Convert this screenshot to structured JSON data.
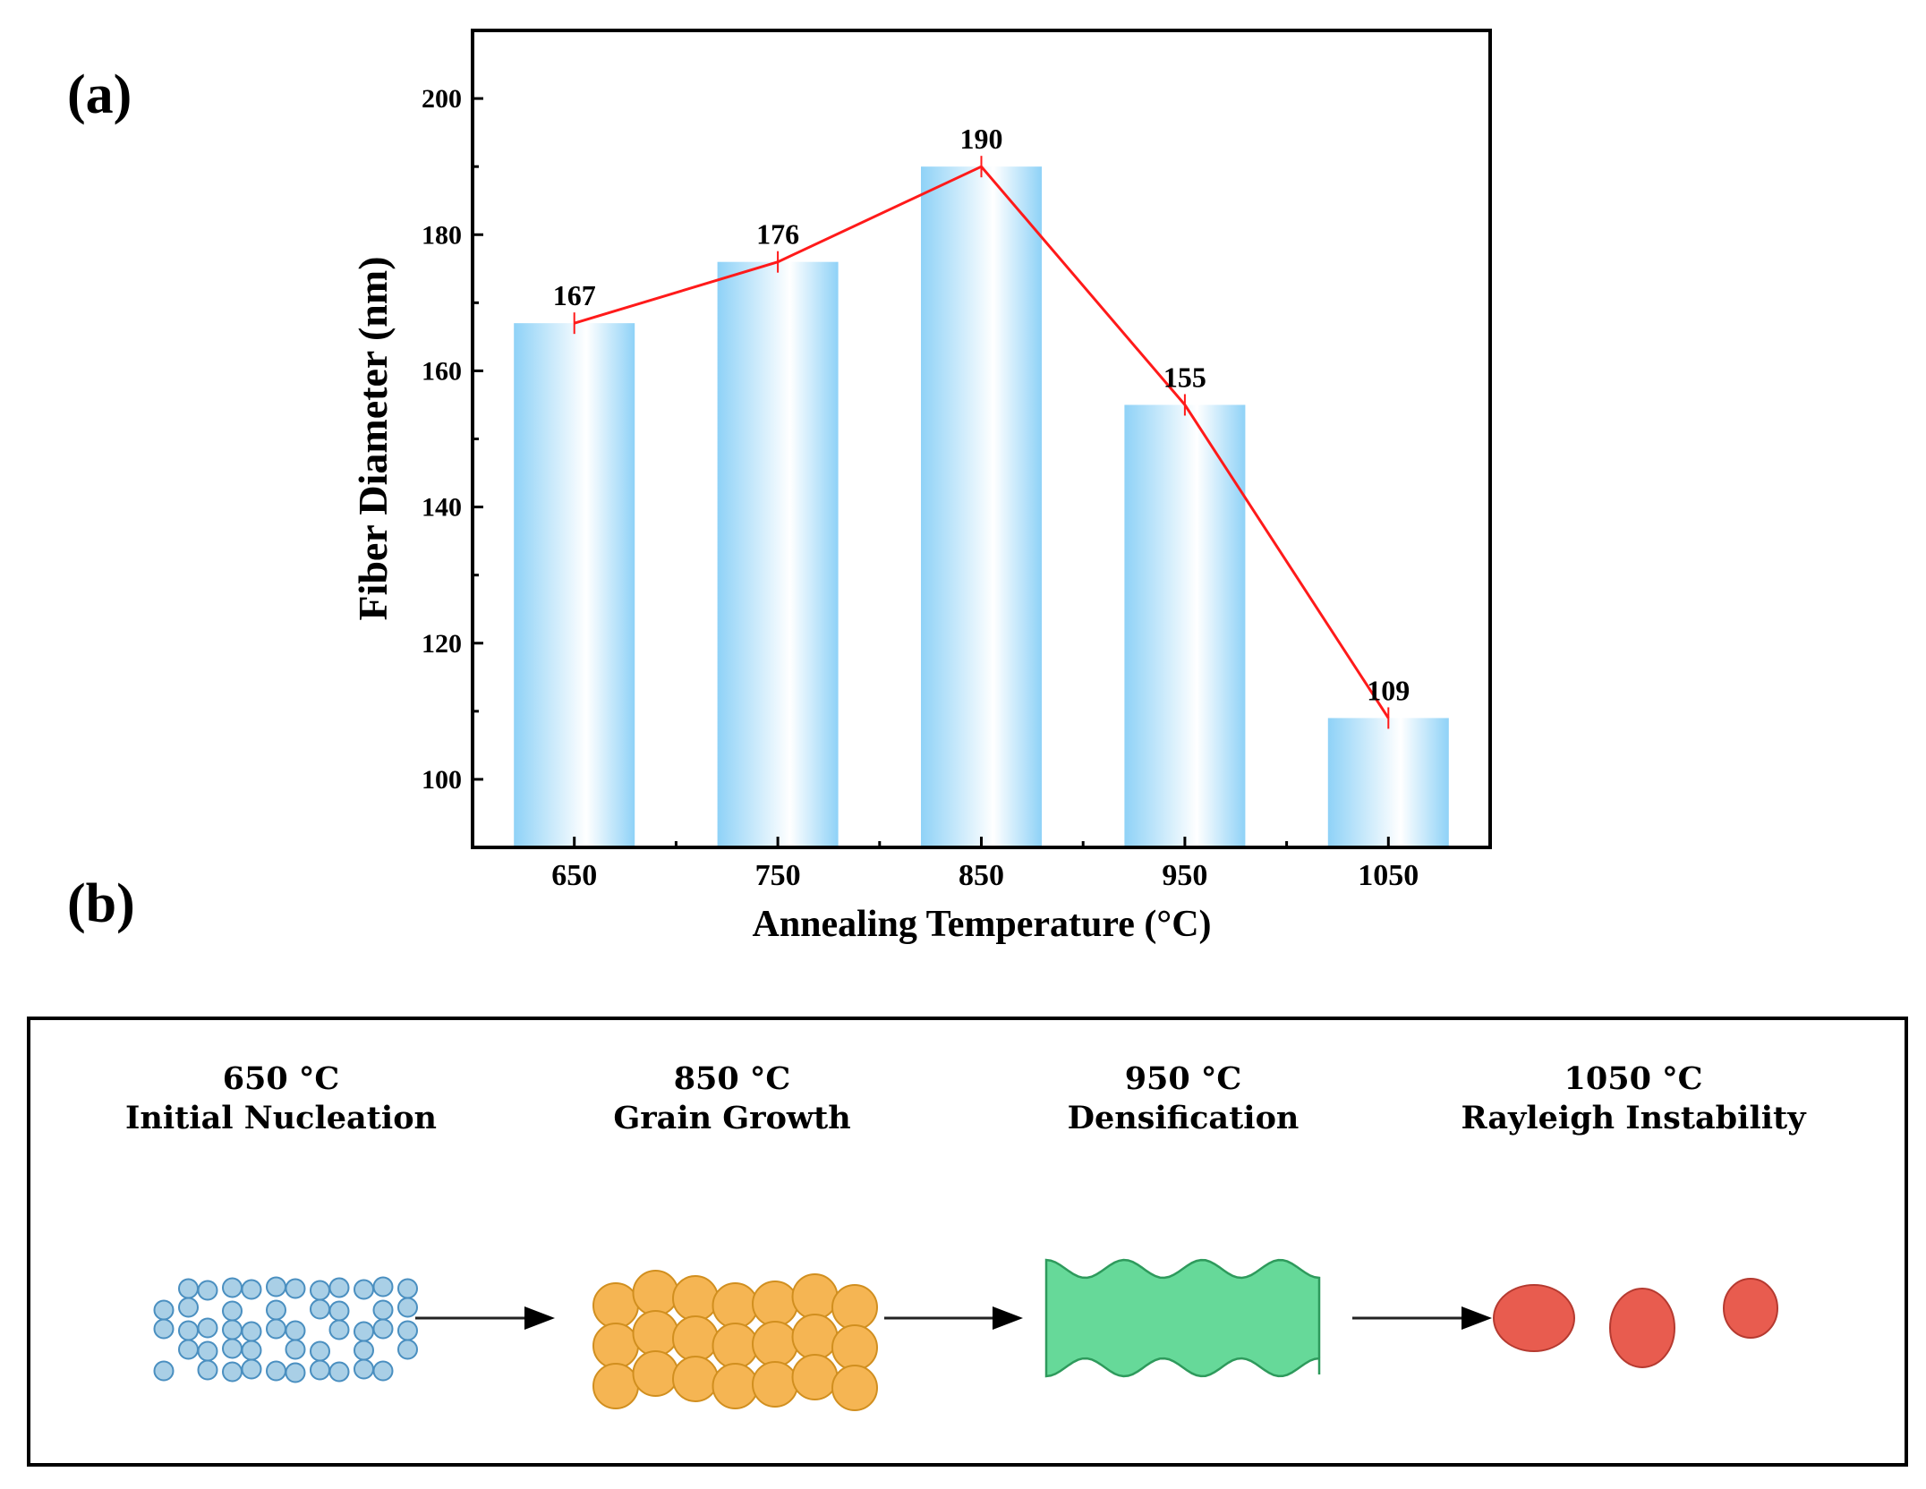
{
  "panel_a_label": "(a)",
  "panel_b_label": "(b)",
  "chart_data": {
    "type": "bar",
    "title": "",
    "xlabel": "Annealing Temperature (°C)",
    "ylabel": "Fiber Diameter (nm)",
    "categories": [
      "650",
      "750",
      "850",
      "950",
      "1050"
    ],
    "x": [
      650,
      750,
      850,
      950,
      1050
    ],
    "values": [
      167,
      176,
      190,
      155,
      109
    ],
    "data_labels": [
      "167",
      "176",
      "190",
      "155",
      "109"
    ],
    "overlay_line": {
      "color": "#ff1a1a",
      "values": [
        167,
        176,
        190,
        155,
        109
      ]
    },
    "xlim": [
      600,
      1100
    ],
    "ylim": [
      90,
      210
    ],
    "yticks": [
      100,
      120,
      140,
      160,
      180,
      200
    ],
    "ytick_labels": [
      "100",
      "120",
      "140",
      "160",
      "180",
      "200"
    ],
    "xtick_labels": [
      "650",
      "750",
      "850",
      "950",
      "1050"
    ],
    "bar_color": "#9fd8f8",
    "grid": false,
    "legend": "none"
  },
  "stages": [
    {
      "temp": "650 °C",
      "name": "Initial Nucleation",
      "color": "#a9cfe6"
    },
    {
      "temp": "850 °C",
      "name": "Grain Growth",
      "color": "#f5b553"
    },
    {
      "temp": "950 °C",
      "name": "Densification",
      "color": "#66d999"
    },
    {
      "temp": "1050 °C",
      "name": "Rayleigh Instability",
      "color": "#e85c4f"
    }
  ]
}
